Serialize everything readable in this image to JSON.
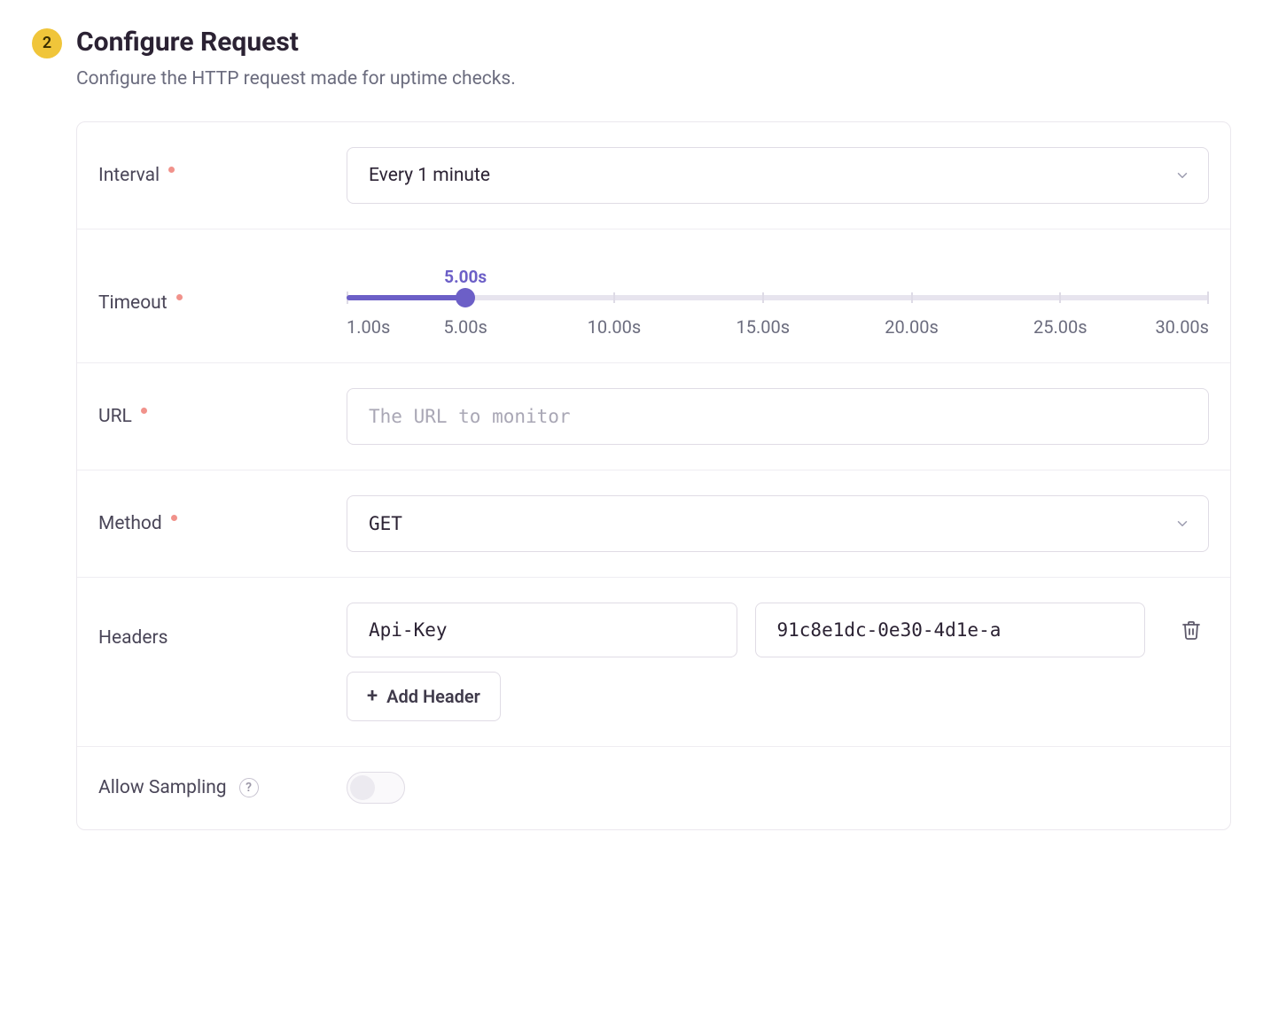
{
  "step": {
    "number": "2",
    "title": "Configure Request",
    "subtitle": "Configure the HTTP request made for uptime checks."
  },
  "colors": {
    "accent": "#6c5fc7",
    "badge_bg": "#f0c53a",
    "required_dot": "#f1928b",
    "text_dark": "#2b2233",
    "text_gray": "#6b6c7e",
    "text_light": "#9c9caf",
    "border": "#e0dce5",
    "row_border": "#efedf2",
    "background": "#ffffff",
    "slider_track": "#e7e4ee"
  },
  "fields": {
    "interval": {
      "label": "Interval",
      "required": true,
      "value": "Every 1 minute"
    },
    "timeout": {
      "label": "Timeout",
      "required": true,
      "min": 1.0,
      "max": 30.0,
      "value": 5.0,
      "value_label": "5.00s",
      "fill_percent": 13.79,
      "ticks": [
        {
          "pos": 0.0,
          "label": "1.00s"
        },
        {
          "pos": 13.79,
          "label": "5.00s"
        },
        {
          "pos": 31.03,
          "label": "10.00s"
        },
        {
          "pos": 48.28,
          "label": "15.00s"
        },
        {
          "pos": 65.52,
          "label": "20.00s"
        },
        {
          "pos": 82.76,
          "label": "25.00s"
        },
        {
          "pos": 100.0,
          "label": "30.00s"
        }
      ]
    },
    "url": {
      "label": "URL",
      "required": true,
      "placeholder": "The URL to monitor",
      "value": ""
    },
    "method": {
      "label": "Method",
      "required": true,
      "value": "GET"
    },
    "headers": {
      "label": "Headers",
      "rows": [
        {
          "key": "Api-Key",
          "value": "91c8e1dc-0e30-4d1e-a"
        }
      ],
      "add_button_label": "Add Header"
    },
    "allow_sampling": {
      "label": "Allow Sampling",
      "value": false
    }
  }
}
